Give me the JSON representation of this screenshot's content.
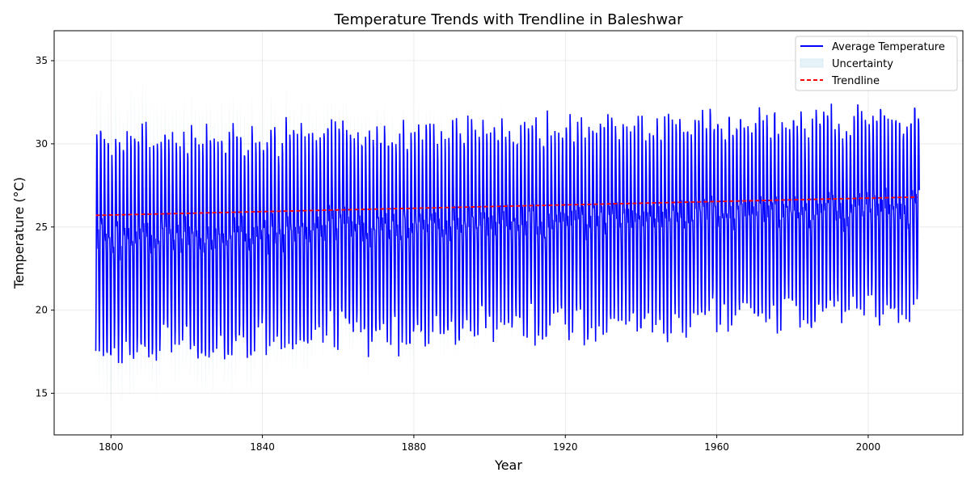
{
  "chart_data": {
    "type": "line",
    "title": "Temperature Trends with Trendline in Baleshwar",
    "xlabel": "Year",
    "ylabel": "Temperature (°C)",
    "xlim": [
      1785,
      2025
    ],
    "ylim": [
      12.5,
      36.8
    ],
    "x_ticks": [
      1800,
      1840,
      1880,
      1920,
      1960,
      2000
    ],
    "y_ticks": [
      15,
      20,
      25,
      30,
      35
    ],
    "grid": true,
    "legend_position": "top-right",
    "x_range": [
      1796,
      2013
    ],
    "series": [
      {
        "name": "Average Temperature",
        "color": "#0000ff",
        "style": "solid",
        "summer_peak_range": [
          29.0,
          32.2
        ],
        "winter_trough_range": [
          16.6,
          22.0
        ],
        "pattern": "monthly seasonal cycle, 12 points per year"
      },
      {
        "name": "Uncertainty",
        "color": "#add8e6",
        "style": "band",
        "early_halfwidth": 2.5,
        "late_halfwidth": 0.3
      },
      {
        "name": "Trendline",
        "color": "#ff0000",
        "style": "dashed",
        "x": [
          1796,
          2013
        ],
        "y": [
          25.7,
          26.8
        ]
      }
    ]
  }
}
